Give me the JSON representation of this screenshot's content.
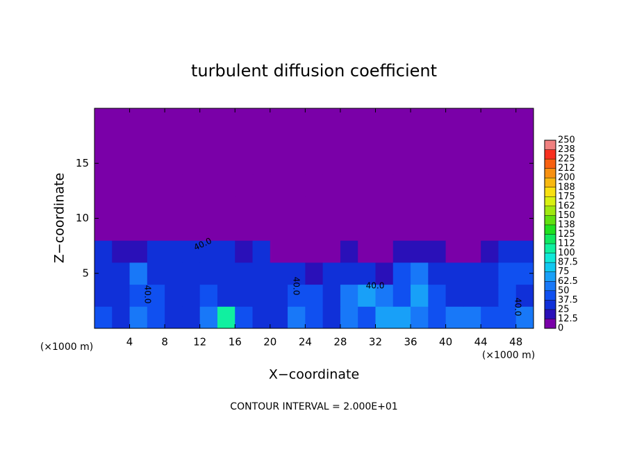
{
  "chart_data": {
    "type": "heatmap",
    "title": "turbulent diffusion coefficient",
    "x_label": "X−coordinate",
    "y_label": "Z−coordinate",
    "x_unit": "(×1000 m)",
    "y_unit": "(×1000 m)",
    "footer": "CONTOUR INTERVAL = 2.000E+01",
    "contour_labels": [
      "40.0",
      "40.0",
      "40.0",
      "40.0",
      "40.0"
    ],
    "xlim": [
      0,
      50
    ],
    "ylim": [
      0,
      20
    ],
    "xticks": [
      4,
      8,
      12,
      16,
      20,
      24,
      28,
      32,
      36,
      40,
      44,
      48
    ],
    "yticks": [
      5,
      10,
      15
    ],
    "xbins": [
      0,
      2,
      4,
      6,
      8,
      10,
      12,
      14,
      16,
      18,
      20,
      22,
      24,
      26,
      28,
      30,
      32,
      34,
      36,
      38,
      40,
      42,
      44,
      46,
      48,
      50
    ],
    "ybins": [
      0,
      2,
      4,
      6,
      8,
      10,
      12,
      14,
      16,
      18,
      20
    ],
    "z": [
      [
        45,
        35,
        60,
        40,
        30,
        25,
        55,
        100,
        45,
        35,
        30,
        60,
        45,
        25,
        55,
        40,
        70,
        65,
        60,
        40,
        55,
        50,
        40,
        45,
        50
      ],
      [
        35,
        30,
        45,
        40,
        35,
        30,
        45,
        35,
        30,
        35,
        30,
        40,
        45,
        30,
        60,
        65,
        55,
        40,
        70,
        40,
        35,
        30,
        35,
        40,
        35
      ],
      [
        30,
        30,
        50,
        35,
        30,
        35,
        30,
        25,
        30,
        30,
        25,
        25,
        15,
        30,
        35,
        30,
        20,
        45,
        50,
        35,
        30,
        30,
        35,
        45,
        40
      ],
      [
        30,
        20,
        20,
        25,
        30,
        30,
        30,
        25,
        20,
        25,
        8,
        5,
        5,
        5,
        20,
        5,
        5,
        15,
        20,
        15,
        10,
        5,
        20,
        30,
        35
      ],
      [
        5,
        0,
        0,
        0,
        0,
        0,
        0,
        0,
        0,
        0,
        0,
        0,
        0,
        0,
        0,
        0,
        0,
        0,
        0,
        0,
        0,
        0,
        0,
        0,
        5
      ],
      [
        0,
        0,
        0,
        0,
        0,
        0,
        0,
        0,
        0,
        0,
        0,
        0,
        0,
        0,
        0,
        0,
        0,
        0,
        0,
        0,
        0,
        0,
        0,
        0,
        0
      ],
      [
        0,
        0,
        0,
        0,
        0,
        0,
        0,
        0,
        0,
        0,
        0,
        0,
        0,
        0,
        0,
        0,
        0,
        0,
        0,
        0,
        0,
        0,
        0,
        0,
        0
      ],
      [
        0,
        0,
        0,
        0,
        0,
        0,
        0,
        0,
        0,
        0,
        0,
        0,
        0,
        0,
        0,
        0,
        0,
        0,
        0,
        0,
        0,
        0,
        0,
        0,
        0
      ],
      [
        0,
        0,
        0,
        0,
        0,
        0,
        0,
        0,
        0,
        0,
        0,
        0,
        0,
        0,
        0,
        0,
        0,
        0,
        0,
        0,
        0,
        0,
        0,
        0,
        0
      ],
      [
        0,
        0,
        0,
        0,
        0,
        0,
        0,
        0,
        0,
        0,
        0,
        0,
        0,
        0,
        0,
        0,
        0,
        0,
        0,
        0,
        0,
        0,
        0,
        0,
        0
      ]
    ],
    "levels": [
      0,
      12.5,
      25,
      37.5,
      50,
      62.5,
      75,
      87.5,
      100,
      112,
      125,
      138,
      150,
      162,
      175,
      188,
      200,
      212,
      225,
      238,
      250
    ],
    "colors": [
      "#7a00a8",
      "#2a10b8",
      "#1030d8",
      "#1050f0",
      "#1878f8",
      "#18a0f8",
      "#10c8f0",
      "#10e8d8",
      "#10f0a0",
      "#10e860",
      "#20e020",
      "#60e010",
      "#a0e810",
      "#d8f010",
      "#f8e010",
      "#f8b810",
      "#f89010",
      "#f86010",
      "#f83020",
      "#f08080"
    ]
  }
}
